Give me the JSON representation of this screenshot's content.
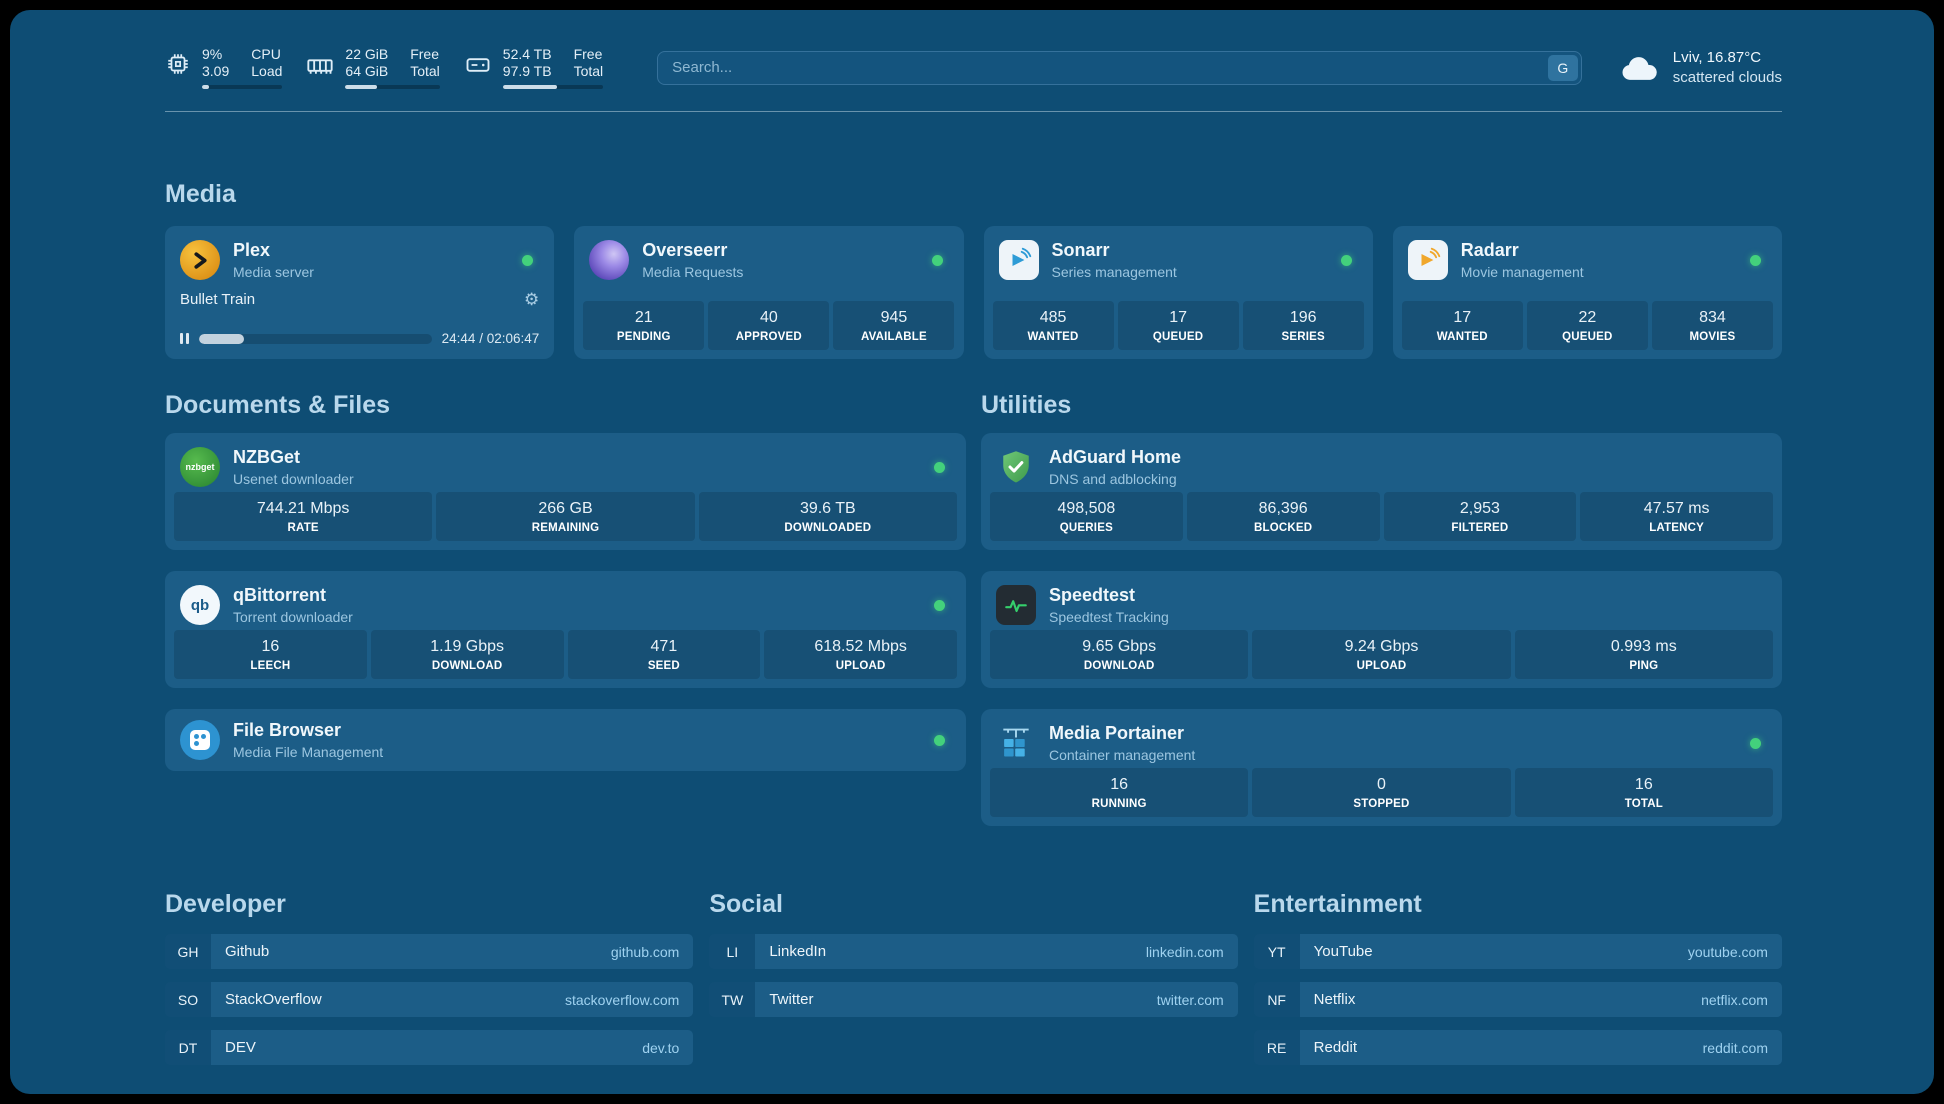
{
  "colors": {
    "page_bg": "#0e4d74",
    "card_bg": "#1c5d87",
    "accent_green": "#43d17c"
  },
  "topbar": {
    "cpu": {
      "value1": "9%",
      "value2": "3.09",
      "label1": "CPU",
      "label2": "Load",
      "progress": 9
    },
    "ram": {
      "value1": "22 GiB",
      "value2": "64 GiB",
      "label1": "Free",
      "label2": "Total",
      "progress": 34
    },
    "disk": {
      "value1": "52.4 TB",
      "value2": "97.9 TB",
      "label1": "Free",
      "label2": "Total",
      "progress": 54
    },
    "search": {
      "placeholder": "Search...",
      "button_label": "G"
    },
    "weather": {
      "location": "Lviv, 16.87°C",
      "condition": "scattered clouds"
    }
  },
  "media": {
    "section_title": "Media",
    "plex": {
      "title": "Plex",
      "subtitle": "Media server",
      "now_playing": "Bullet Train",
      "time": "24:44 / 02:06:47",
      "progress": 19.5
    },
    "overseerr": {
      "title": "Overseerr",
      "subtitle": "Media Requests",
      "stats": [
        {
          "value": "21",
          "label": "PENDING"
        },
        {
          "value": "40",
          "label": "APPROVED"
        },
        {
          "value": "945",
          "label": "AVAILABLE"
        }
      ]
    },
    "sonarr": {
      "title": "Sonarr",
      "subtitle": "Series management",
      "stats": [
        {
          "value": "485",
          "label": "WANTED"
        },
        {
          "value": "17",
          "label": "QUEUED"
        },
        {
          "value": "196",
          "label": "SERIES"
        }
      ]
    },
    "radarr": {
      "title": "Radarr",
      "subtitle": "Movie management",
      "stats": [
        {
          "value": "17",
          "label": "WANTED"
        },
        {
          "value": "22",
          "label": "QUEUED"
        },
        {
          "value": "834",
          "label": "MOVIES"
        }
      ]
    }
  },
  "documents": {
    "section_title": "Documents & Files",
    "nzbget": {
      "title": "NZBGet",
      "subtitle": "Usenet downloader",
      "icon_text": "nzbget",
      "stats": [
        {
          "value": "744.21 Mbps",
          "label": "RATE"
        },
        {
          "value": "266 GB",
          "label": "REMAINING"
        },
        {
          "value": "39.6 TB",
          "label": "DOWNLOADED"
        }
      ]
    },
    "qbittorrent": {
      "title": "qBittorrent",
      "subtitle": "Torrent downloader",
      "icon_text": "qb",
      "stats": [
        {
          "value": "16",
          "label": "LEECH"
        },
        {
          "value": "1.19 Gbps",
          "label": "DOWNLOAD"
        },
        {
          "value": "471",
          "label": "SEED"
        },
        {
          "value": "618.52 Mbps",
          "label": "UPLOAD"
        }
      ]
    },
    "filebrowser": {
      "title": "File Browser",
      "subtitle": "Media File Management"
    }
  },
  "utilities": {
    "section_title": "Utilities",
    "adguard": {
      "title": "AdGuard Home",
      "subtitle": "DNS and adblocking",
      "stats": [
        {
          "value": "498,508",
          "label": "QUERIES"
        },
        {
          "value": "86,396",
          "label": "BLOCKED"
        },
        {
          "value": "2,953",
          "label": "FILTERED"
        },
        {
          "value": "47.57 ms",
          "label": "LATENCY"
        }
      ]
    },
    "speedtest": {
      "title": "Speedtest",
      "subtitle": "Speedtest Tracking",
      "stats": [
        {
          "value": "9.65 Gbps",
          "label": "DOWNLOAD"
        },
        {
          "value": "9.24 Gbps",
          "label": "UPLOAD"
        },
        {
          "value": "0.993 ms",
          "label": "PING"
        }
      ]
    },
    "portainer": {
      "title": "Media Portainer",
      "subtitle": "Container management",
      "stats": [
        {
          "value": "16",
          "label": "RUNNING"
        },
        {
          "value": "0",
          "label": "STOPPED"
        },
        {
          "value": "16",
          "label": "TOTAL"
        }
      ]
    }
  },
  "bookmarks": {
    "developer": {
      "section_title": "Developer",
      "items": [
        {
          "abbr": "GH",
          "name": "Github",
          "url": "github.com"
        },
        {
          "abbr": "SO",
          "name": "StackOverflow",
          "url": "stackoverflow.com"
        },
        {
          "abbr": "DT",
          "name": "DEV",
          "url": "dev.to"
        }
      ]
    },
    "social": {
      "section_title": "Social",
      "items": [
        {
          "abbr": "LI",
          "name": "LinkedIn",
          "url": "linkedin.com"
        },
        {
          "abbr": "TW",
          "name": "Twitter",
          "url": "twitter.com"
        }
      ]
    },
    "entertainment": {
      "section_title": "Entertainment",
      "items": [
        {
          "abbr": "YT",
          "name": "YouTube",
          "url": "youtube.com"
        },
        {
          "abbr": "NF",
          "name": "Netflix",
          "url": "netflix.com"
        },
        {
          "abbr": "RE",
          "name": "Reddit",
          "url": "reddit.com"
        }
      ]
    }
  }
}
